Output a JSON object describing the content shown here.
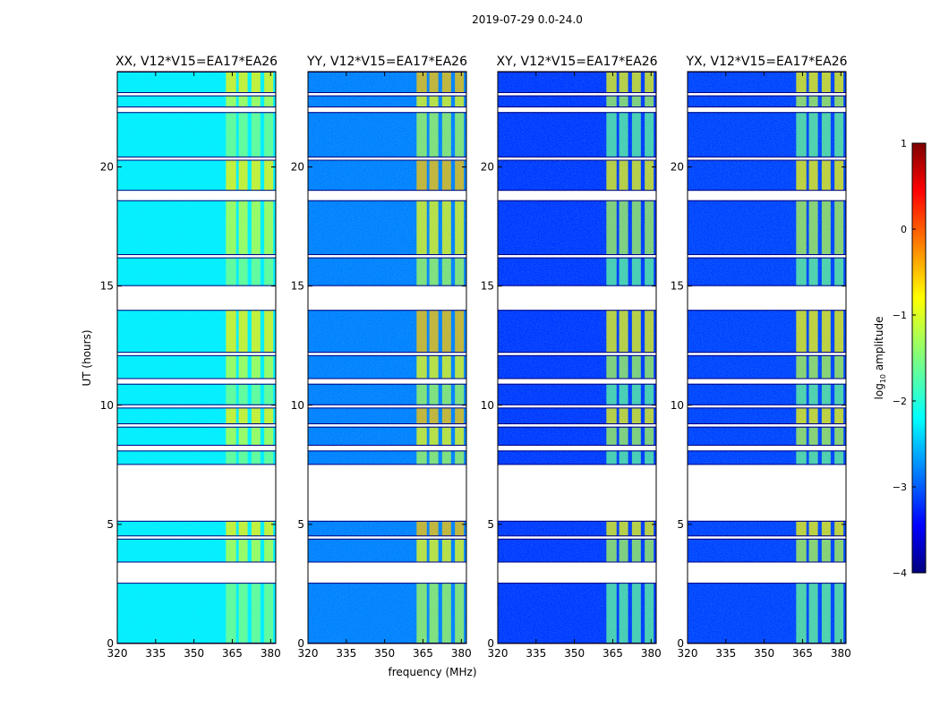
{
  "figure_title": "2019-07-29 0.0-24.0",
  "chart_data": {
    "type": "heatmap",
    "title": "2019-07-29 0.0-24.0",
    "xlabel": "frequency (MHz)",
    "ylabel": "UT (hours)",
    "xlim": [
      320,
      382
    ],
    "ylim": [
      0,
      24
    ],
    "xticks": [
      320,
      335,
      350,
      365,
      380
    ],
    "yticks": [
      0,
      5,
      10,
      15,
      20
    ],
    "panels": [
      {
        "title": "XX, V12*V15=EA17*EA26",
        "baseline_level": -2.2,
        "rfi_level": -1.15
      },
      {
        "title": "YY, V12*V15=EA17*EA26",
        "baseline_level": -2.75,
        "rfi_level": -0.95
      },
      {
        "title": "XY, V12*V15=EA17*EA26",
        "baseline_level": -3.1,
        "rfi_level": -1.3
      },
      {
        "title": "YX, V12*V15=EA17*EA26",
        "baseline_level": -3.05,
        "rfi_level": -1.25
      }
    ],
    "rfi_bands_mhz": [
      [
        362.5,
        366.5
      ],
      [
        367.5,
        371.0
      ],
      [
        372.5,
        376.0
      ],
      [
        377.5,
        381.0
      ]
    ],
    "data_time_blocks_h": [
      [
        0.0,
        2.55
      ],
      [
        3.4,
        4.4
      ],
      [
        4.5,
        5.15
      ],
      [
        7.5,
        8.1
      ],
      [
        8.3,
        9.1
      ],
      [
        9.2,
        9.9
      ],
      [
        10.0,
        10.9
      ],
      [
        11.1,
        12.1
      ],
      [
        12.2,
        14.0
      ],
      [
        15.0,
        16.2
      ],
      [
        16.3,
        18.6
      ],
      [
        19.0,
        20.3
      ],
      [
        20.4,
        22.3
      ],
      [
        22.5,
        23.0
      ],
      [
        23.1,
        24.0
      ]
    ],
    "colorbar": {
      "label": "log10 amplitude",
      "range": [
        -4,
        1
      ],
      "ticks": [
        "1",
        "0",
        "−1",
        "−2",
        "−3",
        "−4"
      ],
      "colormap": "jet"
    }
  }
}
